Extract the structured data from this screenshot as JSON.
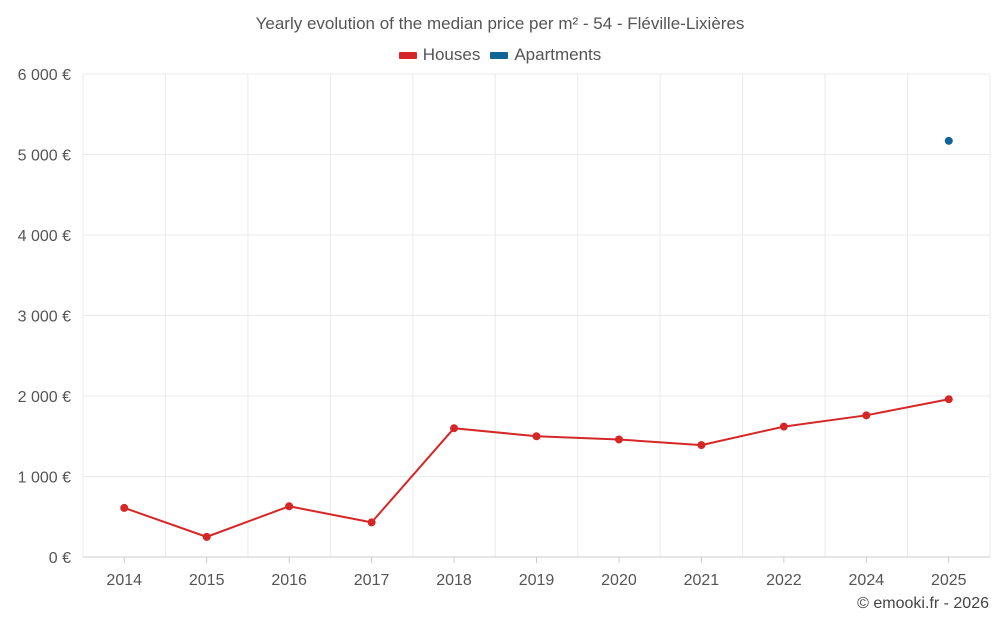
{
  "chart_data": {
    "type": "line",
    "title": "Yearly evolution of the median price per m² - 54 - Fléville-Lixières",
    "xlabel": "",
    "ylabel": "",
    "categories": [
      "2014",
      "2015",
      "2016",
      "2017",
      "2018",
      "2019",
      "2020",
      "2021",
      "2022",
      "2024",
      "2025"
    ],
    "ylim": [
      0,
      6000
    ],
    "yticks": [
      0,
      1000,
      2000,
      3000,
      4000,
      5000,
      6000
    ],
    "ytick_labels": [
      "0 €",
      "1 000 €",
      "2 000 €",
      "3 000 €",
      "4 000 €",
      "5 000 €",
      "6 000 €"
    ],
    "grid": true,
    "legend_position": "top-center",
    "series": [
      {
        "name": "Houses",
        "color": "#d62728",
        "values": [
          610,
          250,
          630,
          430,
          1600,
          1500,
          1460,
          1390,
          1620,
          1760,
          1960
        ]
      },
      {
        "name": "Apartments",
        "color": "#0e6596",
        "values": [
          null,
          null,
          null,
          null,
          null,
          null,
          null,
          null,
          null,
          null,
          5170
        ]
      }
    ]
  },
  "credit": "© emooki.fr - 2026"
}
